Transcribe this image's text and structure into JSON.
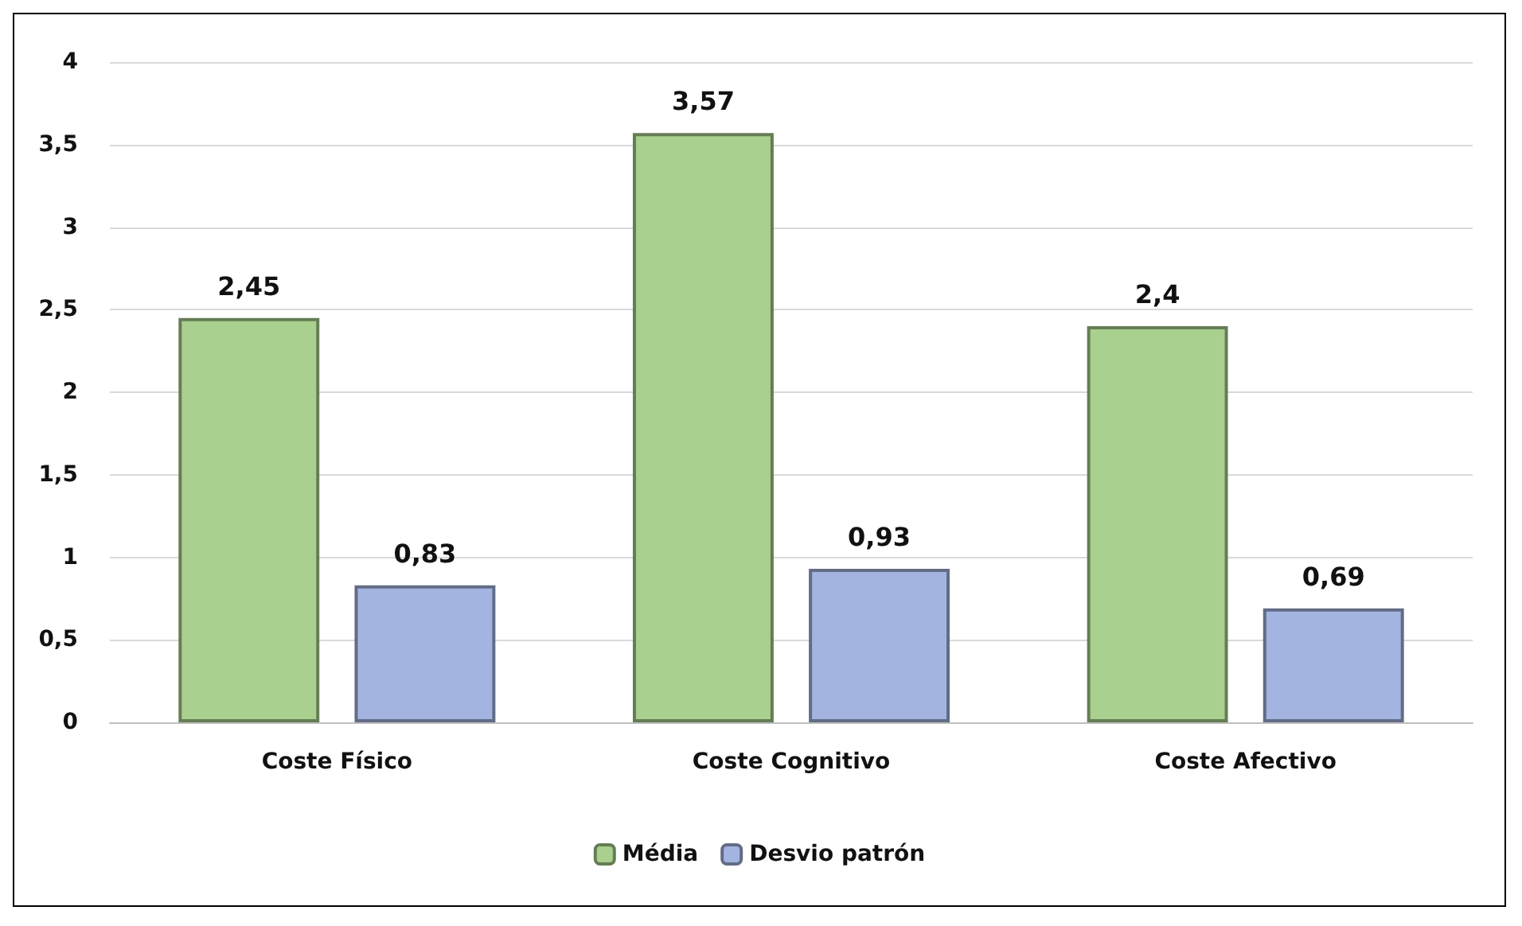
{
  "chart_data": {
    "type": "bar",
    "categories": [
      "Coste Físico",
      "Coste Cognitivo",
      "Coste Afectivo"
    ],
    "series": [
      {
        "name": "Média",
        "color": "#a9d08e",
        "values": [
          2.45,
          3.57,
          2.4
        ],
        "value_labels": [
          "2,45",
          "3,57",
          "2,4"
        ]
      },
      {
        "name": "Desvio patrón",
        "color": "#a4b4e0",
        "values": [
          0.83,
          0.93,
          0.69
        ],
        "value_labels": [
          "0,83",
          "0,93",
          "0,69"
        ]
      }
    ],
    "ylim": [
      0,
      4
    ],
    "yticks": [
      0,
      {
        "value": 0.5,
        "label": "0,5"
      },
      1,
      {
        "value": 1.5,
        "label": "1,5"
      },
      2,
      {
        "value": 2.5,
        "label": "2,5"
      },
      3,
      {
        "value": 3.5,
        "label": "3,5"
      },
      4
    ],
    "grid": "y",
    "legend": "bottom"
  }
}
